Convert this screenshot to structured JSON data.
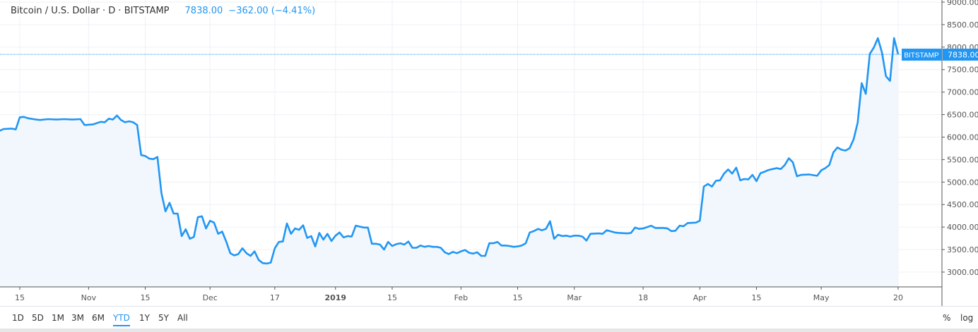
{
  "header": {
    "symbol": "Bitcoin / U.S. Dollar · D · BITSTAMP",
    "last": "7838.00",
    "change": "−362.00 (−4.41%)"
  },
  "price_label": {
    "exchange": "BITSTAMP",
    "value": "7838.00"
  },
  "toolbar": {
    "ranges": [
      "1D",
      "5D",
      "1M",
      "3M",
      "6M",
      "YTD",
      "1Y",
      "5Y",
      "All"
    ],
    "active": "YTD",
    "percent": "%",
    "log": "log"
  },
  "colors": {
    "line": "#2196f3",
    "fill": "#f1f7fd",
    "grid": "#edf0f4",
    "axis": "#555555"
  },
  "chart_data": {
    "type": "area",
    "title": "",
    "xlabel": "",
    "ylabel": "",
    "ylim": [
      2700,
      9050
    ],
    "grid": true,
    "y_axis_position": "right",
    "y_ticks": [
      "3000.00",
      "3500.00",
      "4000.00",
      "4500.00",
      "5000.00",
      "5500.00",
      "6000.00",
      "6500.00",
      "7000.00",
      "7500.00",
      "8000.00",
      "8500.00",
      "9000.00"
    ],
    "x_ticks": [
      {
        "label": "15",
        "date": "2018-10-15"
      },
      {
        "label": "Nov",
        "date": "2018-11-01"
      },
      {
        "label": "15",
        "date": "2018-11-15"
      },
      {
        "label": "Dec",
        "date": "2018-12-01"
      },
      {
        "label": "17",
        "date": "2018-12-17"
      },
      {
        "label": "2019",
        "date": "2019-01-01",
        "bold": true
      },
      {
        "label": "15",
        "date": "2019-01-15"
      },
      {
        "label": "Feb",
        "date": "2019-02-01"
      },
      {
        "label": "15",
        "date": "2019-02-15"
      },
      {
        "label": "Mar",
        "date": "2019-03-01"
      },
      {
        "label": "18",
        "date": "2019-03-18"
      },
      {
        "label": "Apr",
        "date": "2019-04-01"
      },
      {
        "label": "15",
        "date": "2019-04-15"
      },
      {
        "label": "May",
        "date": "2019-05-01"
      },
      {
        "label": "20",
        "date": "2019-05-20"
      }
    ],
    "last_value": 7838.0,
    "series": [
      {
        "points": [
          [
            "2018-10-10",
            6140
          ],
          [
            "2018-10-11",
            6180
          ],
          [
            "2018-10-13",
            6190
          ],
          [
            "2018-10-14",
            6170
          ],
          [
            "2018-10-15",
            6440
          ],
          [
            "2018-10-16",
            6450
          ],
          [
            "2018-10-17",
            6420
          ],
          [
            "2018-10-19",
            6390
          ],
          [
            "2018-10-20",
            6380
          ],
          [
            "2018-10-22",
            6400
          ],
          [
            "2018-10-24",
            6390
          ],
          [
            "2018-10-26",
            6400
          ],
          [
            "2018-10-28",
            6390
          ],
          [
            "2018-10-30",
            6400
          ],
          [
            "2018-10-31",
            6270
          ],
          [
            "2018-11-02",
            6280
          ],
          [
            "2018-11-04",
            6340
          ],
          [
            "2018-11-05",
            6330
          ],
          [
            "2018-11-06",
            6410
          ],
          [
            "2018-11-07",
            6390
          ],
          [
            "2018-11-08",
            6480
          ],
          [
            "2018-11-09",
            6380
          ],
          [
            "2018-11-10",
            6330
          ],
          [
            "2018-11-11",
            6350
          ],
          [
            "2018-11-12",
            6330
          ],
          [
            "2018-11-13",
            6270
          ],
          [
            "2018-11-14",
            5600
          ],
          [
            "2018-11-15",
            5580
          ],
          [
            "2018-11-16",
            5520
          ],
          [
            "2018-11-17",
            5510
          ],
          [
            "2018-11-18",
            5560
          ],
          [
            "2018-11-19",
            4750
          ],
          [
            "2018-11-20",
            4350
          ],
          [
            "2018-11-21",
            4540
          ],
          [
            "2018-11-22",
            4300
          ],
          [
            "2018-11-23",
            4300
          ],
          [
            "2018-11-24",
            3800
          ],
          [
            "2018-11-25",
            3950
          ],
          [
            "2018-11-26",
            3740
          ],
          [
            "2018-11-27",
            3780
          ],
          [
            "2018-11-28",
            4220
          ],
          [
            "2018-11-29",
            4240
          ],
          [
            "2018-11-30",
            3970
          ],
          [
            "2018-12-01",
            4140
          ],
          [
            "2018-12-02",
            4100
          ],
          [
            "2018-12-03",
            3850
          ],
          [
            "2018-12-04",
            3900
          ],
          [
            "2018-12-05",
            3680
          ],
          [
            "2018-12-06",
            3420
          ],
          [
            "2018-12-07",
            3370
          ],
          [
            "2018-12-08",
            3400
          ],
          [
            "2018-12-09",
            3530
          ],
          [
            "2018-12-10",
            3420
          ],
          [
            "2018-12-11",
            3360
          ],
          [
            "2018-12-12",
            3460
          ],
          [
            "2018-12-13",
            3270
          ],
          [
            "2018-12-14",
            3200
          ],
          [
            "2018-12-15",
            3190
          ],
          [
            "2018-12-16",
            3210
          ],
          [
            "2018-12-17",
            3530
          ],
          [
            "2018-12-18",
            3670
          ],
          [
            "2018-12-19",
            3680
          ],
          [
            "2018-12-20",
            4080
          ],
          [
            "2018-12-21",
            3850
          ],
          [
            "2018-12-22",
            3970
          ],
          [
            "2018-12-23",
            3940
          ],
          [
            "2018-12-24",
            4040
          ],
          [
            "2018-12-25",
            3760
          ],
          [
            "2018-12-26",
            3800
          ],
          [
            "2018-12-27",
            3570
          ],
          [
            "2018-12-28",
            3870
          ],
          [
            "2018-12-29",
            3720
          ],
          [
            "2018-12-30",
            3850
          ],
          [
            "2018-12-31",
            3690
          ],
          [
            "2019-01-01",
            3810
          ],
          [
            "2019-01-02",
            3880
          ],
          [
            "2019-01-03",
            3770
          ],
          [
            "2019-01-04",
            3800
          ],
          [
            "2019-01-05",
            3790
          ],
          [
            "2019-01-06",
            4030
          ],
          [
            "2019-01-07",
            4010
          ],
          [
            "2019-01-08",
            3990
          ],
          [
            "2019-01-09",
            3990
          ],
          [
            "2019-01-10",
            3630
          ],
          [
            "2019-01-11",
            3630
          ],
          [
            "2019-01-12",
            3610
          ],
          [
            "2019-01-13",
            3500
          ],
          [
            "2019-01-14",
            3670
          ],
          [
            "2019-01-15",
            3580
          ],
          [
            "2019-01-16",
            3620
          ],
          [
            "2019-01-17",
            3640
          ],
          [
            "2019-01-18",
            3610
          ],
          [
            "2019-01-19",
            3680
          ],
          [
            "2019-01-20",
            3540
          ],
          [
            "2019-01-21",
            3540
          ],
          [
            "2019-01-22",
            3590
          ],
          [
            "2019-01-23",
            3560
          ],
          [
            "2019-01-24",
            3580
          ],
          [
            "2019-01-25",
            3560
          ],
          [
            "2019-01-26",
            3560
          ],
          [
            "2019-01-27",
            3540
          ],
          [
            "2019-01-28",
            3440
          ],
          [
            "2019-01-29",
            3400
          ],
          [
            "2019-01-30",
            3450
          ],
          [
            "2019-01-31",
            3420
          ],
          [
            "2019-02-01",
            3460
          ],
          [
            "2019-02-02",
            3490
          ],
          [
            "2019-02-03",
            3430
          ],
          [
            "2019-02-04",
            3410
          ],
          [
            "2019-02-05",
            3440
          ],
          [
            "2019-02-06",
            3360
          ],
          [
            "2019-02-07",
            3360
          ],
          [
            "2019-02-08",
            3640
          ],
          [
            "2019-02-09",
            3640
          ],
          [
            "2019-02-10",
            3670
          ],
          [
            "2019-02-11",
            3590
          ],
          [
            "2019-02-12",
            3590
          ],
          [
            "2019-02-13",
            3580
          ],
          [
            "2019-02-14",
            3560
          ],
          [
            "2019-02-15",
            3570
          ],
          [
            "2019-02-16",
            3590
          ],
          [
            "2019-02-17",
            3640
          ],
          [
            "2019-02-18",
            3880
          ],
          [
            "2019-02-19",
            3910
          ],
          [
            "2019-02-20",
            3960
          ],
          [
            "2019-02-21",
            3930
          ],
          [
            "2019-02-22",
            3960
          ],
          [
            "2019-02-23",
            4130
          ],
          [
            "2019-02-24",
            3740
          ],
          [
            "2019-02-25",
            3830
          ],
          [
            "2019-02-26",
            3800
          ],
          [
            "2019-02-27",
            3810
          ],
          [
            "2019-02-28",
            3790
          ],
          [
            "2019-03-01",
            3810
          ],
          [
            "2019-03-02",
            3810
          ],
          [
            "2019-03-03",
            3790
          ],
          [
            "2019-03-04",
            3700
          ],
          [
            "2019-03-05",
            3850
          ],
          [
            "2019-03-07",
            3860
          ],
          [
            "2019-03-08",
            3850
          ],
          [
            "2019-03-09",
            3930
          ],
          [
            "2019-03-11",
            3880
          ],
          [
            "2019-03-12",
            3870
          ],
          [
            "2019-03-14",
            3860
          ],
          [
            "2019-03-15",
            3870
          ],
          [
            "2019-03-16",
            3990
          ],
          [
            "2019-03-17",
            3960
          ],
          [
            "2019-03-18",
            3970
          ],
          [
            "2019-03-20",
            4030
          ],
          [
            "2019-03-21",
            3980
          ],
          [
            "2019-03-23",
            3980
          ],
          [
            "2019-03-24",
            3970
          ],
          [
            "2019-03-25",
            3910
          ],
          [
            "2019-03-26",
            3920
          ],
          [
            "2019-03-27",
            4030
          ],
          [
            "2019-03-28",
            4020
          ],
          [
            "2019-03-29",
            4090
          ],
          [
            "2019-03-31",
            4100
          ],
          [
            "2019-04-01",
            4140
          ],
          [
            "2019-04-02",
            4900
          ],
          [
            "2019-04-03",
            4960
          ],
          [
            "2019-04-04",
            4900
          ],
          [
            "2019-04-05",
            5030
          ],
          [
            "2019-04-06",
            5040
          ],
          [
            "2019-04-07",
            5190
          ],
          [
            "2019-04-08",
            5280
          ],
          [
            "2019-04-09",
            5190
          ],
          [
            "2019-04-10",
            5320
          ],
          [
            "2019-04-11",
            5040
          ],
          [
            "2019-04-12",
            5070
          ],
          [
            "2019-04-13",
            5060
          ],
          [
            "2019-04-14",
            5160
          ],
          [
            "2019-04-15",
            5020
          ],
          [
            "2019-04-16",
            5200
          ],
          [
            "2019-04-17",
            5230
          ],
          [
            "2019-04-18",
            5270
          ],
          [
            "2019-04-19",
            5290
          ],
          [
            "2019-04-20",
            5310
          ],
          [
            "2019-04-21",
            5290
          ],
          [
            "2019-04-22",
            5380
          ],
          [
            "2019-04-23",
            5530
          ],
          [
            "2019-04-24",
            5440
          ],
          [
            "2019-04-25",
            5130
          ],
          [
            "2019-04-26",
            5160
          ],
          [
            "2019-04-28",
            5170
          ],
          [
            "2019-04-30",
            5140
          ],
          [
            "2019-05-01",
            5260
          ],
          [
            "2019-05-02",
            5310
          ],
          [
            "2019-05-03",
            5380
          ],
          [
            "2019-05-04",
            5660
          ],
          [
            "2019-05-05",
            5770
          ],
          [
            "2019-05-06",
            5720
          ],
          [
            "2019-05-07",
            5700
          ],
          [
            "2019-05-08",
            5750
          ],
          [
            "2019-05-09",
            5950
          ],
          [
            "2019-05-10",
            6320
          ],
          [
            "2019-05-11",
            7200
          ],
          [
            "2019-05-12",
            6960
          ],
          [
            "2019-05-13",
            7850
          ],
          [
            "2019-05-14",
            7990
          ],
          [
            "2019-05-15",
            8200
          ],
          [
            "2019-05-16",
            7880
          ],
          [
            "2019-05-17",
            7350
          ],
          [
            "2019-05-18",
            7250
          ],
          [
            "2019-05-19",
            8200
          ],
          [
            "2019-05-20",
            7838
          ]
        ]
      }
    ]
  }
}
